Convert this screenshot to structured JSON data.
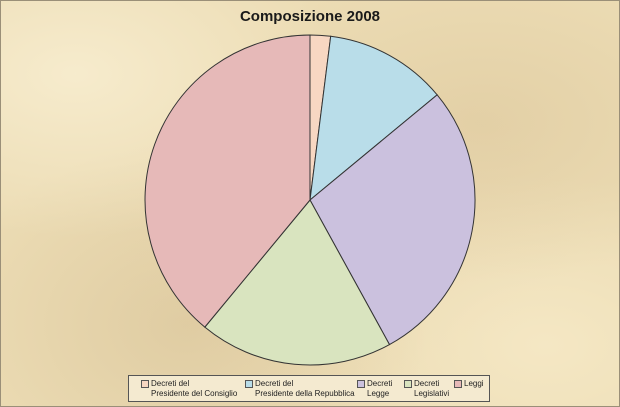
{
  "chart_data": {
    "type": "pie",
    "title": "Composizione 2008",
    "slices": [
      {
        "label": "Decreti del\nPresidente del Consiglio",
        "value": 2,
        "color": "#f7d7c2"
      },
      {
        "label": "Decreti del\nPresidente della Repubblica",
        "value": 12,
        "color": "#b9dde9"
      },
      {
        "label": "Decreti\nLegge",
        "value": 28,
        "color": "#cbc1de"
      },
      {
        "label": "Decreti\nLegislativi",
        "value": 19,
        "color": "#d9e4bf"
      },
      {
        "label": "Leggi",
        "value": 39,
        "color": "#e6b9b8"
      }
    ],
    "legend_position": "bottom"
  }
}
